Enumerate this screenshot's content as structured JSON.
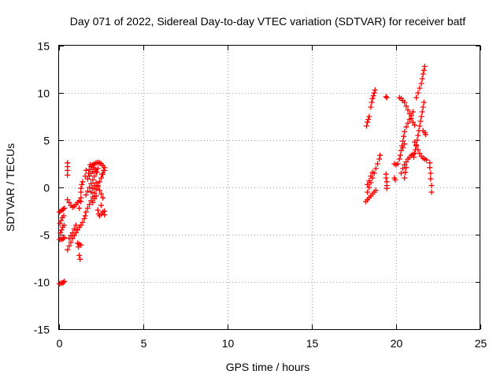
{
  "chart_data": {
    "type": "scatter",
    "title": "Day 071 of 2022, Sidereal Day-to-day VTEC variation (SDTVAR) for receiver batf",
    "xlabel": "GPS time / hours",
    "ylabel": "SDTVAR / TECUs",
    "xlim": [
      0,
      25
    ],
    "ylim": [
      -15,
      15
    ],
    "xticks": [
      0,
      5,
      10,
      15,
      20,
      25
    ],
    "yticks": [
      -15,
      -10,
      -5,
      0,
      5,
      10,
      15
    ],
    "grid": true,
    "marker": "+",
    "series": [
      {
        "name": "SDTVAR",
        "color": "#ff0000",
        "points": [
          [
            0.02,
            -10.2
          ],
          [
            0.1,
            -10.15
          ],
          [
            0.18,
            -10.1
          ],
          [
            0.25,
            -10.05
          ],
          [
            0.32,
            -9.95
          ],
          [
            0.02,
            -2.6
          ],
          [
            0.1,
            -2.5
          ],
          [
            0.18,
            -2.4
          ],
          [
            0.25,
            -2.3
          ],
          [
            0.32,
            -2.2
          ],
          [
            0.05,
            -3.8
          ],
          [
            0.12,
            -3.5
          ],
          [
            0.2,
            -3.2
          ],
          [
            0.28,
            -3.0
          ],
          [
            0.03,
            -5.5
          ],
          [
            0.1,
            -5.45
          ],
          [
            0.18,
            -5.5
          ],
          [
            0.25,
            -5.4
          ],
          [
            0.32,
            -5.3
          ],
          [
            0.08,
            -4.8
          ],
          [
            0.15,
            -4.5
          ],
          [
            0.22,
            -4.2
          ],
          [
            0.3,
            -4.0
          ],
          [
            0.5,
            2.6
          ],
          [
            0.5,
            2.2
          ],
          [
            0.5,
            1.8
          ],
          [
            0.5,
            1.3
          ],
          [
            0.5,
            -1.3
          ],
          [
            0.6,
            -1.6
          ],
          [
            0.7,
            -1.9
          ],
          [
            0.8,
            -2.1
          ],
          [
            0.9,
            -2.0
          ],
          [
            1.0,
            -1.8
          ],
          [
            1.1,
            -1.6
          ],
          [
            1.2,
            -1.4
          ],
          [
            1.3,
            -1.1
          ],
          [
            1.3,
            -0.5
          ],
          [
            1.3,
            -0.1
          ],
          [
            1.35,
            0.3
          ],
          [
            1.4,
            0.6
          ],
          [
            1.3,
            -1.5
          ],
          [
            1.2,
            -2.2
          ],
          [
            0.5,
            -6.6
          ],
          [
            0.6,
            -6.2
          ],
          [
            0.7,
            -5.8
          ],
          [
            0.8,
            -5.4
          ],
          [
            0.9,
            -5.1
          ],
          [
            1.0,
            -4.8
          ],
          [
            1.1,
            -4.5
          ],
          [
            1.2,
            -4.2
          ],
          [
            1.3,
            -4.0
          ],
          [
            1.4,
            -3.7
          ],
          [
            0.6,
            -5.4
          ],
          [
            0.7,
            -5.1
          ],
          [
            0.8,
            -4.8
          ],
          [
            0.9,
            -4.4
          ],
          [
            1.0,
            -4.0
          ],
          [
            1.1,
            -5.9
          ],
          [
            1.2,
            -6.0
          ],
          [
            1.3,
            -6.1
          ],
          [
            1.15,
            -6.3
          ],
          [
            1.2,
            -7.2
          ],
          [
            1.25,
            -7.6
          ],
          [
            1.5,
            -3.3
          ],
          [
            1.55,
            -3.0
          ],
          [
            1.6,
            -2.6
          ],
          [
            1.7,
            -2.2
          ],
          [
            1.8,
            -1.8
          ],
          [
            1.9,
            -1.4
          ],
          [
            2.0,
            -1.0
          ],
          [
            2.1,
            -0.6
          ],
          [
            2.2,
            -0.2
          ],
          [
            2.3,
            0.2
          ],
          [
            2.4,
            0.6
          ],
          [
            2.5,
            1.0
          ],
          [
            2.6,
            1.4
          ],
          [
            2.7,
            1.8
          ],
          [
            1.6,
            -0.8
          ],
          [
            1.7,
            -0.4
          ],
          [
            1.8,
            0.0
          ],
          [
            1.9,
            0.4
          ],
          [
            2.0,
            0.8
          ],
          [
            2.1,
            1.2
          ],
          [
            2.2,
            1.6
          ],
          [
            2.3,
            2.0
          ],
          [
            1.75,
            1.5
          ],
          [
            1.8,
            1.9
          ],
          [
            1.9,
            2.2
          ],
          [
            2.0,
            2.4
          ],
          [
            2.1,
            2.5
          ],
          [
            2.2,
            2.6
          ],
          [
            2.3,
            2.65
          ],
          [
            2.4,
            2.6
          ],
          [
            2.5,
            2.5
          ],
          [
            2.6,
            2.3
          ],
          [
            2.7,
            2.1
          ],
          [
            2.65,
            1.8
          ],
          [
            2.55,
            1.4
          ],
          [
            1.85,
            2.4
          ],
          [
            1.95,
            2.3
          ],
          [
            2.05,
            2.1
          ],
          [
            2.15,
            1.9
          ],
          [
            2.25,
            1.6
          ],
          [
            1.7,
            0.9
          ],
          [
            1.8,
            1.2
          ],
          [
            1.9,
            1.5
          ],
          [
            2.0,
            1.7
          ],
          [
            1.9,
            -0.5
          ],
          [
            2.0,
            -0.1
          ],
          [
            2.1,
            0.2
          ],
          [
            2.2,
            0.5
          ],
          [
            2.3,
            0.1
          ],
          [
            2.4,
            -0.3
          ],
          [
            2.5,
            -0.7
          ],
          [
            2.6,
            -1.1
          ],
          [
            2.0,
            -1.6
          ],
          [
            2.1,
            -1.2
          ],
          [
            2.2,
            -0.9
          ],
          [
            2.3,
            -2.4
          ],
          [
            2.35,
            -2.8
          ],
          [
            2.4,
            -3.0
          ],
          [
            2.5,
            -2.8
          ],
          [
            2.6,
            -2.6
          ],
          [
            2.7,
            -2.5
          ],
          [
            2.7,
            -2.9
          ],
          [
            2.5,
            -1.9
          ],
          [
            1.6,
            1.8
          ],
          [
            1.55,
            1.2
          ],
          [
            18.2,
            -1.5
          ],
          [
            18.3,
            -1.3
          ],
          [
            18.4,
            -1.1
          ],
          [
            18.5,
            -0.9
          ],
          [
            18.6,
            -0.7
          ],
          [
            18.7,
            -0.5
          ],
          [
            18.8,
            -0.3
          ],
          [
            18.3,
            -0.5
          ],
          [
            18.4,
            0.0
          ],
          [
            18.5,
            0.5
          ],
          [
            18.6,
            1.0
          ],
          [
            18.7,
            1.5
          ],
          [
            18.8,
            2.0
          ],
          [
            18.9,
            2.5
          ],
          [
            19.0,
            3.0
          ],
          [
            19.05,
            3.4
          ],
          [
            18.3,
            0.3
          ],
          [
            18.4,
            0.7
          ],
          [
            18.5,
            1.2
          ],
          [
            18.6,
            1.6
          ],
          [
            18.25,
            6.5
          ],
          [
            18.3,
            6.9
          ],
          [
            18.35,
            7.2
          ],
          [
            18.4,
            7.5
          ],
          [
            18.5,
            8.5
          ],
          [
            18.55,
            9.0
          ],
          [
            18.6,
            9.4
          ],
          [
            18.65,
            9.7
          ],
          [
            18.7,
            10.0
          ],
          [
            18.75,
            10.3
          ],
          [
            19.4,
            9.6
          ],
          [
            19.45,
            9.5
          ],
          [
            19.4,
            1.4
          ],
          [
            19.4,
            1.0
          ],
          [
            19.45,
            0.6
          ],
          [
            19.45,
            0.2
          ],
          [
            19.45,
            -0.1
          ],
          [
            19.9,
            1.0
          ],
          [
            19.95,
            0.8
          ],
          [
            19.9,
            2.5
          ],
          [
            20.0,
            2.4
          ],
          [
            20.1,
            2.5
          ],
          [
            20.2,
            3.0
          ],
          [
            20.25,
            3.4
          ],
          [
            20.3,
            3.9
          ],
          [
            20.35,
            4.4
          ],
          [
            20.4,
            4.9
          ],
          [
            20.45,
            5.4
          ],
          [
            20.5,
            5.9
          ],
          [
            20.6,
            6.4
          ],
          [
            20.7,
            6.8
          ],
          [
            20.8,
            7.2
          ],
          [
            20.9,
            7.6
          ],
          [
            21.0,
            8.0
          ],
          [
            20.2,
            9.5
          ],
          [
            20.3,
            9.4
          ],
          [
            20.4,
            9.2
          ],
          [
            20.5,
            9.0
          ],
          [
            20.6,
            8.6
          ],
          [
            20.7,
            8.2
          ],
          [
            20.8,
            7.8
          ],
          [
            20.9,
            7.3
          ],
          [
            21.0,
            6.9
          ],
          [
            21.1,
            6.6
          ],
          [
            20.3,
            1.5
          ],
          [
            20.4,
            2.0
          ],
          [
            20.5,
            2.4
          ],
          [
            20.6,
            2.7
          ],
          [
            20.7,
            3.0
          ],
          [
            20.8,
            3.2
          ],
          [
            20.9,
            3.4
          ],
          [
            21.0,
            3.5
          ],
          [
            20.5,
            1.0
          ],
          [
            20.55,
            1.6
          ],
          [
            20.6,
            2.1
          ],
          [
            20.4,
            4.2
          ],
          [
            20.5,
            4.6
          ],
          [
            21.05,
            3.2
          ],
          [
            21.1,
            3.6
          ],
          [
            21.15,
            4.0
          ],
          [
            21.2,
            4.5
          ],
          [
            21.25,
            5.0
          ],
          [
            21.3,
            5.5
          ],
          [
            21.35,
            6.0
          ],
          [
            21.4,
            6.5
          ],
          [
            21.45,
            7.0
          ],
          [
            21.5,
            7.5
          ],
          [
            21.55,
            8.0
          ],
          [
            21.6,
            8.5
          ],
          [
            21.65,
            9.0
          ],
          [
            21.2,
            9.5
          ],
          [
            21.3,
            10.0
          ],
          [
            21.4,
            10.5
          ],
          [
            21.5,
            11.0
          ],
          [
            21.55,
            11.5
          ],
          [
            21.6,
            12.0
          ],
          [
            21.65,
            12.4
          ],
          [
            21.7,
            12.8
          ],
          [
            21.1,
            4.8
          ],
          [
            21.2,
            4.4
          ],
          [
            21.3,
            4.0
          ],
          [
            21.4,
            3.6
          ],
          [
            21.5,
            3.3
          ],
          [
            21.6,
            3.1
          ],
          [
            21.7,
            3.0
          ],
          [
            21.8,
            2.9
          ],
          [
            21.6,
            6.0
          ],
          [
            21.7,
            5.8
          ],
          [
            21.75,
            5.6
          ],
          [
            22.0,
            2.6
          ],
          [
            22.0,
            2.1
          ],
          [
            22.05,
            1.5
          ],
          [
            22.05,
            0.9
          ],
          [
            22.1,
            0.2
          ],
          [
            22.1,
            -0.5
          ]
        ]
      }
    ]
  }
}
